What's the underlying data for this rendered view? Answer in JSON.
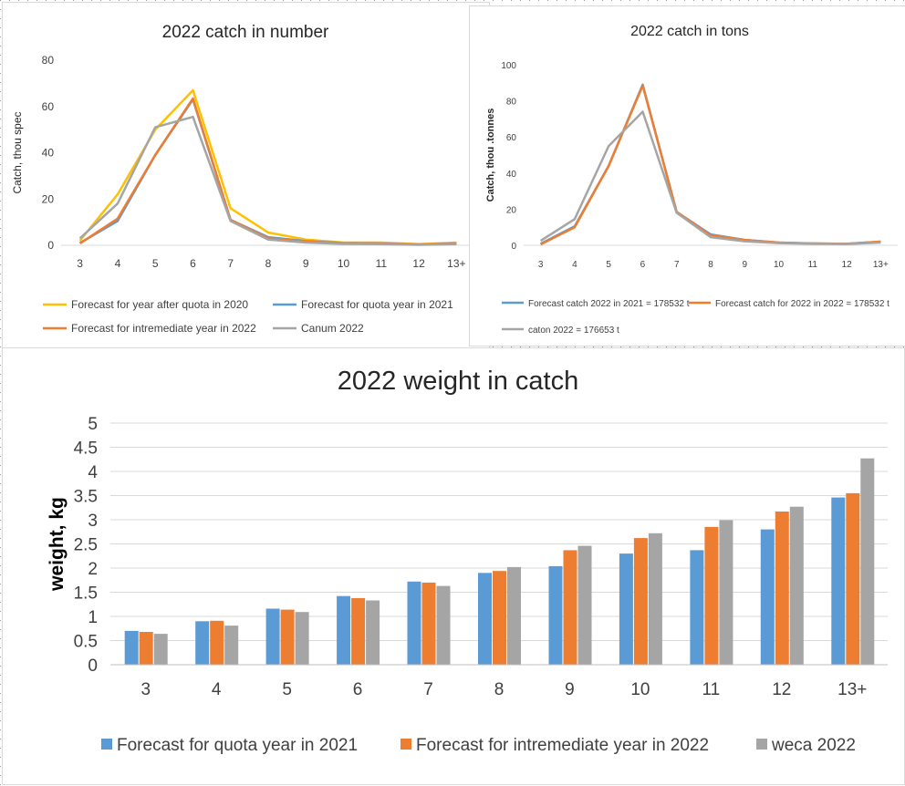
{
  "chart_data": [
    {
      "type": "line",
      "title": "2022 catch in number",
      "xlabel": "",
      "ylabel": "Catch, thou spec",
      "ylim": [
        0,
        80
      ],
      "yticks": [
        "0",
        "20",
        "40",
        "60",
        "80"
      ],
      "categories": [
        "3",
        "4",
        "5",
        "6",
        "7",
        "8",
        "9",
        "10",
        "11",
        "12",
        "13+"
      ],
      "legend_position": "bottom",
      "series": [
        {
          "name": "Forecast for year after quota in 2020",
          "color": "#ffc000",
          "values": [
            2,
            22,
            50,
            67,
            16,
            5.5,
            2.5,
            1.2,
            1.2,
            0.5,
            1.2
          ]
        },
        {
          "name": "Forecast for quota year in 2021",
          "color": "#5b9bd5",
          "values": [
            1,
            10.5,
            39,
            63,
            11,
            3.5,
            1.8,
            1,
            0.8,
            0.4,
            0.8
          ]
        },
        {
          "name": "Forecast for intremediate year in 2022",
          "color": "#ed7d31",
          "values": [
            0.8,
            11.5,
            39,
            63.5,
            11,
            3,
            1.6,
            0.9,
            0.7,
            0.4,
            0.7
          ]
        },
        {
          "name": "Canum 2022",
          "color": "#a5a5a5",
          "values": [
            3,
            18,
            51,
            55.5,
            10.5,
            2.5,
            1.2,
            0.6,
            0.5,
            0.2,
            0.5
          ]
        }
      ]
    },
    {
      "type": "line",
      "title": "2022 catch in tons",
      "xlabel": "",
      "ylabel": "Catch, thou .tonnes",
      "ylim": [
        0,
        100
      ],
      "yticks": [
        "0",
        "20",
        "40",
        "60",
        "80",
        "100"
      ],
      "categories": [
        "3",
        "4",
        "5",
        "6",
        "7",
        "8",
        "9",
        "10",
        "11",
        "12",
        "13+"
      ],
      "legend_position": "bottom",
      "series": [
        {
          "name": "Forecast catch 2022 in 2021 = 178532 t",
          "color": "#5b9bd5",
          "values": [
            0.8,
            10.5,
            44,
            89,
            18.5,
            6,
            3,
            1.5,
            1,
            0.8,
            2
          ]
        },
        {
          "name": "Forecast catch for 2022  in 2022 = 178532 t",
          "color": "#ed7d31",
          "values": [
            0.5,
            10,
            44,
            88.5,
            18.5,
            5.5,
            3,
            1.5,
            1,
            0.8,
            2
          ]
        },
        {
          "name": "caton 2022 = 176653 t",
          "color": "#a5a5a5",
          "values": [
            2.5,
            14.5,
            55,
            74,
            18,
            4.5,
            2.2,
            1.2,
            0.8,
            0.7,
            1.5
          ]
        }
      ]
    },
    {
      "type": "bar",
      "title": "2022 weight in catch",
      "xlabel": "",
      "ylabel": "weight, kg",
      "ylim": [
        0,
        5
      ],
      "yticks": [
        "0",
        "0.5",
        "1",
        "1.5",
        "2",
        "2.5",
        "3",
        "3.5",
        "4",
        "4.5",
        "5"
      ],
      "categories": [
        "3",
        "4",
        "5",
        "6",
        "7",
        "8",
        "9",
        "10",
        "11",
        "12",
        "13+"
      ],
      "legend_position": "bottom",
      "series": [
        {
          "name": "Forecast for quota year in 2021",
          "color": "#5b9bd5",
          "values": [
            0.7,
            0.9,
            1.16,
            1.42,
            1.72,
            1.9,
            2.04,
            2.3,
            2.37,
            2.8,
            3.46
          ]
        },
        {
          "name": "Forecast for intremediate year in 2022",
          "color": "#ed7d31",
          "values": [
            0.68,
            0.91,
            1.14,
            1.38,
            1.7,
            1.94,
            2.37,
            2.62,
            2.85,
            3.17,
            3.55
          ]
        },
        {
          "name": "weca 2022",
          "color": "#a5a5a5",
          "values": [
            0.64,
            0.81,
            1.09,
            1.33,
            1.63,
            2.02,
            2.46,
            2.72,
            2.99,
            3.27,
            4.27
          ]
        }
      ]
    }
  ]
}
